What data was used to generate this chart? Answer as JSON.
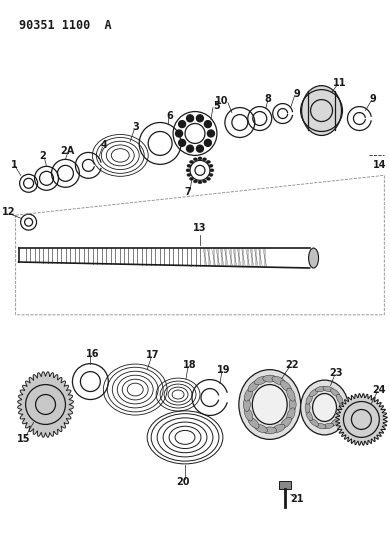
{
  "title": "90351 1100  A",
  "bg_color": "#ffffff",
  "line_color": "#1a1a1a",
  "fig_width": 3.9,
  "fig_height": 5.33,
  "dpi": 100
}
